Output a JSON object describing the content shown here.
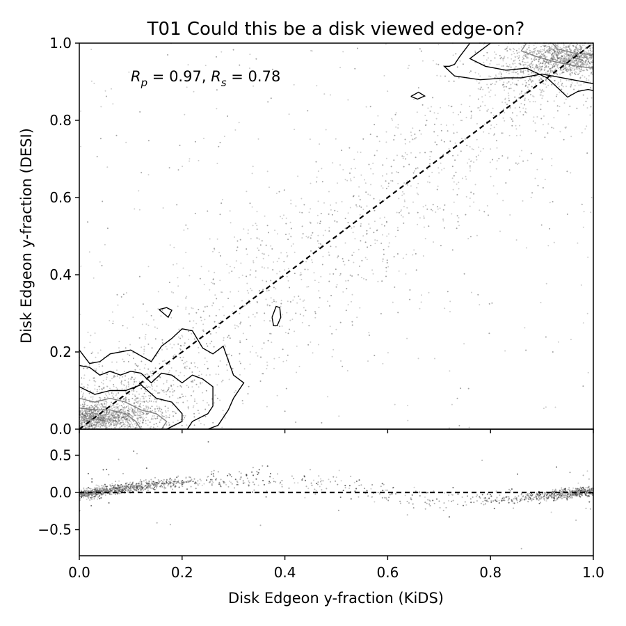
{
  "chart_data": [
    {
      "panel": "main",
      "type": "scatter",
      "title": "T01 Could this be a disk viewed edge-on?",
      "xlabel": "",
      "ylabel": "Disk Edgeon y-fraction (DESI)",
      "xlim": [
        0.0,
        1.0
      ],
      "ylim": [
        0.0,
        1.0
      ],
      "xticks": [
        "0.0",
        "0.2",
        "0.4",
        "0.6",
        "0.8",
        "1.0"
      ],
      "yticks": [
        "0.0",
        "0.2",
        "0.4",
        "0.6",
        "0.8",
        "1.0"
      ],
      "xtick_values": [
        0.0,
        0.2,
        0.4,
        0.6,
        0.8,
        1.0
      ],
      "ytick_values": [
        0.0,
        0.2,
        0.4,
        0.6,
        0.8,
        1.0
      ],
      "show_xtick_labels": false,
      "annotation": {
        "x": 0.1,
        "y": 0.9,
        "parts": [
          {
            "text": "R",
            "style": "italic"
          },
          {
            "text": "p",
            "style": "sub"
          },
          {
            "text": " = 0.97, ",
            "style": "roman"
          },
          {
            "text": "R",
            "style": "italic"
          },
          {
            "text": "s",
            "style": "sub"
          },
          {
            "text": " = 0.78",
            "style": "roman"
          }
        ]
      },
      "reference_line": {
        "x": [
          0.0,
          1.0
        ],
        "y": [
          0.0,
          1.0
        ],
        "style": "dashed",
        "color": "#000000"
      },
      "point_color": "#9a9a9a",
      "dense_clusters": [
        {
          "center": [
            0.04,
            0.03
          ],
          "spread": [
            0.05,
            0.015
          ],
          "count": 900
        },
        {
          "center": [
            0.1,
            0.07
          ],
          "spread": [
            0.08,
            0.05
          ],
          "count": 500
        },
        {
          "center": [
            0.95,
            0.96
          ],
          "spread": [
            0.04,
            0.02
          ],
          "count": 800
        },
        {
          "center": [
            0.88,
            0.93
          ],
          "spread": [
            0.06,
            0.04
          ],
          "count": 350
        }
      ],
      "contours": [
        {
          "color": "#000000",
          "points": [
            [
              0.0,
              0.205
            ],
            [
              0.02,
              0.17
            ],
            [
              0.04,
              0.175
            ],
            [
              0.06,
              0.195
            ],
            [
              0.08,
              0.2
            ],
            [
              0.1,
              0.205
            ],
            [
              0.12,
              0.19
            ],
            [
              0.14,
              0.175
            ],
            [
              0.16,
              0.215
            ],
            [
              0.18,
              0.235
            ],
            [
              0.2,
              0.26
            ],
            [
              0.22,
              0.255
            ],
            [
              0.24,
              0.21
            ],
            [
              0.26,
              0.195
            ],
            [
              0.28,
              0.215
            ],
            [
              0.3,
              0.14
            ],
            [
              0.32,
              0.12
            ],
            [
              0.3,
              0.08
            ],
            [
              0.29,
              0.05
            ],
            [
              0.27,
              0.01
            ],
            [
              0.25,
              0.0
            ]
          ]
        },
        {
          "color": "#000000",
          "points": [
            [
              0.0,
              0.165
            ],
            [
              0.02,
              0.16
            ],
            [
              0.04,
              0.14
            ],
            [
              0.06,
              0.15
            ],
            [
              0.08,
              0.14
            ],
            [
              0.1,
              0.15
            ],
            [
              0.12,
              0.145
            ],
            [
              0.14,
              0.12
            ],
            [
              0.16,
              0.145
            ],
            [
              0.18,
              0.14
            ],
            [
              0.2,
              0.12
            ],
            [
              0.22,
              0.14
            ],
            [
              0.24,
              0.13
            ],
            [
              0.26,
              0.11
            ],
            [
              0.26,
              0.06
            ],
            [
              0.25,
              0.04
            ],
            [
              0.22,
              0.02
            ],
            [
              0.21,
              0.0
            ]
          ]
        },
        {
          "color": "#000000",
          "points": [
            [
              0.0,
              0.11
            ],
            [
              0.03,
              0.09
            ],
            [
              0.06,
              0.1
            ],
            [
              0.09,
              0.1
            ],
            [
              0.12,
              0.115
            ],
            [
              0.15,
              0.08
            ],
            [
              0.18,
              0.07
            ],
            [
              0.2,
              0.04
            ],
            [
              0.2,
              0.02
            ],
            [
              0.17,
              0.0
            ]
          ]
        },
        {
          "color": "#7f7f7f",
          "points": [
            [
              0.0,
              0.08
            ],
            [
              0.03,
              0.07
            ],
            [
              0.06,
              0.08
            ],
            [
              0.09,
              0.07
            ],
            [
              0.12,
              0.05
            ],
            [
              0.15,
              0.04
            ],
            [
              0.17,
              0.02
            ],
            [
              0.16,
              0.0
            ]
          ]
        },
        {
          "color": "#7f7f7f",
          "points": [
            [
              0.0,
              0.055
            ],
            [
              0.03,
              0.05
            ],
            [
              0.06,
              0.05
            ],
            [
              0.09,
              0.04
            ],
            [
              0.11,
              0.02
            ],
            [
              0.12,
              0.0
            ]
          ]
        },
        {
          "color": "#000000",
          "points": [
            [
              0.155,
              0.31
            ],
            [
              0.17,
              0.315
            ],
            [
              0.18,
              0.308
            ],
            [
              0.173,
              0.29
            ],
            [
              0.155,
              0.31
            ]
          ]
        },
        {
          "color": "#000000",
          "points": [
            [
              0.375,
              0.29
            ],
            [
              0.383,
              0.318
            ],
            [
              0.39,
              0.315
            ],
            [
              0.392,
              0.29
            ],
            [
              0.385,
              0.268
            ],
            [
              0.378,
              0.268
            ],
            [
              0.375,
              0.29
            ]
          ]
        },
        {
          "color": "#000000",
          "points": [
            [
              0.645,
              0.862
            ],
            [
              0.66,
              0.873
            ],
            [
              0.672,
              0.863
            ],
            [
              0.658,
              0.855
            ],
            [
              0.645,
              0.862
            ]
          ]
        },
        {
          "color": "#000000",
          "points": [
            [
              0.76,
              1.0
            ],
            [
              0.74,
              0.965
            ],
            [
              0.73,
              0.945
            ],
            [
              0.72,
              0.94
            ],
            [
              0.71,
              0.94
            ],
            [
              0.73,
              0.915
            ],
            [
              0.78,
              0.905
            ],
            [
              0.83,
              0.91
            ],
            [
              0.86,
              0.91
            ],
            [
              0.9,
              0.92
            ],
            [
              0.96,
              0.905
            ],
            [
              1.0,
              0.895
            ]
          ]
        },
        {
          "color": "#000000",
          "points": [
            [
              0.8,
              1.0
            ],
            [
              0.78,
              0.98
            ],
            [
              0.76,
              0.96
            ],
            [
              0.79,
              0.94
            ],
            [
              0.83,
              0.93
            ],
            [
              0.87,
              0.935
            ],
            [
              0.91,
              0.91
            ],
            [
              0.95,
              0.86
            ],
            [
              0.97,
              0.875
            ],
            [
              0.99,
              0.88
            ],
            [
              1.0,
              0.877
            ]
          ]
        },
        {
          "color": "#7f7f7f",
          "points": [
            [
              0.87,
              1.0
            ],
            [
              0.86,
              0.98
            ],
            [
              0.89,
              0.965
            ],
            [
              0.93,
              0.95
            ],
            [
              0.97,
              0.94
            ],
            [
              1.0,
              0.935
            ]
          ]
        },
        {
          "color": "#7f7f7f",
          "points": [
            [
              0.92,
              1.0
            ],
            [
              0.93,
              0.985
            ],
            [
              0.96,
              0.975
            ],
            [
              1.0,
              0.97
            ]
          ]
        }
      ]
    },
    {
      "panel": "residual",
      "type": "scatter",
      "xlabel": "Disk Edgeon y-fraction (KiDS)",
      "ylabel": "",
      "xlim": [
        0.0,
        1.0
      ],
      "ylim": [
        -0.85,
        0.85
      ],
      "xticks": [
        "0.0",
        "0.2",
        "0.4",
        "0.6",
        "0.8",
        "1.0"
      ],
      "yticks": [
        "0.5",
        "0.0",
        "−0.5"
      ],
      "xtick_values": [
        0.0,
        0.2,
        0.4,
        0.6,
        0.8,
        1.0
      ],
      "ytick_values": [
        0.5,
        0.0,
        -0.5
      ],
      "reference_line": {
        "x": [
          0.0,
          1.0
        ],
        "y": [
          0.0,
          0.0
        ],
        "style": "dashed",
        "color": "#000000"
      },
      "point_color": "#9a9a9a",
      "band": {
        "description_trend": "residual rises roughly linearly from 0.0 at x=0 to about +0.2 near x=0.25, then falls back through 0 toward -0.1 near x=0.9 and returns to 0 at x=1",
        "trend": [
          [
            0.0,
            -0.03
          ],
          [
            0.1,
            0.07
          ],
          [
            0.2,
            0.14
          ],
          [
            0.3,
            0.18
          ],
          [
            0.5,
            0.1
          ],
          [
            0.6,
            -0.05
          ],
          [
            0.7,
            -0.12
          ],
          [
            0.8,
            -0.1
          ],
          [
            0.9,
            -0.05
          ],
          [
            1.0,
            0.02
          ]
        ]
      }
    }
  ]
}
